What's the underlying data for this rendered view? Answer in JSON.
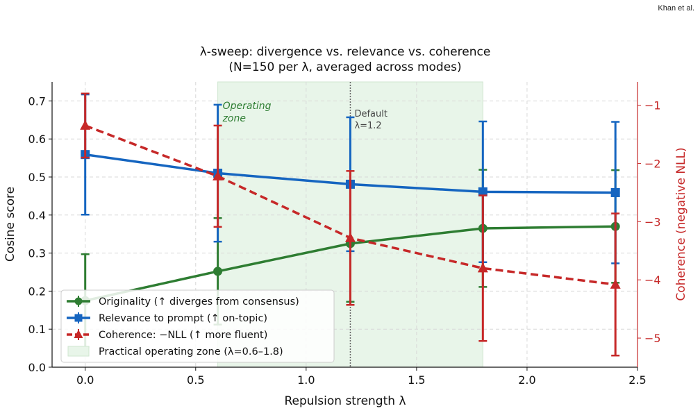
{
  "header": {
    "author": "Khan et al."
  },
  "chart_data": {
    "type": "line",
    "title": "λ-sweep: divergence vs. relevance vs. coherence",
    "subtitle": "(N=150 per λ, averaged across modes)",
    "xlabel": "Repulsion strength λ",
    "ylabel": "Cosine score",
    "y2label": "Coherence (negative NLL)",
    "xlim": [
      -0.15,
      2.5
    ],
    "ylim": [
      0.0,
      0.75
    ],
    "y2lim": [
      -5.5,
      -0.6
    ],
    "x_ticks": [
      0.0,
      0.5,
      1.0,
      1.5,
      2.0,
      2.5
    ],
    "x_tick_labels": [
      "0.0",
      "0.5",
      "1.0",
      "1.5",
      "2.0",
      "2.5"
    ],
    "y_ticks": [
      0.0,
      0.1,
      0.2,
      0.3,
      0.4,
      0.5,
      0.6,
      0.7
    ],
    "y_tick_labels": [
      "0.0",
      "0.1",
      "0.2",
      "0.3",
      "0.4",
      "0.5",
      "0.6",
      "0.7"
    ],
    "y2_ticks": [
      -5,
      -4,
      -3,
      -2,
      -1
    ],
    "y2_tick_labels": [
      "−5",
      "−4",
      "−3",
      "−2",
      "−1"
    ],
    "grid": true,
    "legend_position": "lower-left",
    "x": [
      0.0,
      0.6,
      1.2,
      1.8,
      2.4
    ],
    "series": [
      {
        "name": "Originality (↑ diverges from consensus)",
        "axis": "left",
        "color": "#2e7d32",
        "marker": "circle",
        "line": "solid",
        "values": [
          0.175,
          0.252,
          0.325,
          0.365,
          0.37
        ],
        "err": [
          0.122,
          0.14,
          0.153,
          0.154,
          0.148
        ]
      },
      {
        "name": "Relevance to prompt (↑ on-topic)",
        "axis": "left",
        "color": "#1565c0",
        "marker": "square",
        "line": "solid",
        "values": [
          0.559,
          0.51,
          0.481,
          0.461,
          0.459
        ],
        "err": [
          0.158,
          0.18,
          0.176,
          0.185,
          0.186
        ]
      },
      {
        "name": "Coherence: −NLL (↑ more fluent)",
        "axis": "right",
        "color": "#c62828",
        "marker": "triangle",
        "line": "dashed",
        "values": [
          -1.35,
          -2.22,
          -3.28,
          -3.8,
          -4.08
        ],
        "err": [
          0.55,
          0.87,
          1.15,
          1.25,
          1.22
        ]
      }
    ],
    "shaded_region": {
      "name": "Practical operating zone (λ=0.6–1.8)",
      "x": [
        0.6,
        1.8
      ],
      "color": "#e8f5e9",
      "label": [
        "Operating",
        "zone"
      ]
    },
    "vline": {
      "x": 1.2,
      "label": [
        "Default",
        "λ=1.2"
      ]
    }
  }
}
